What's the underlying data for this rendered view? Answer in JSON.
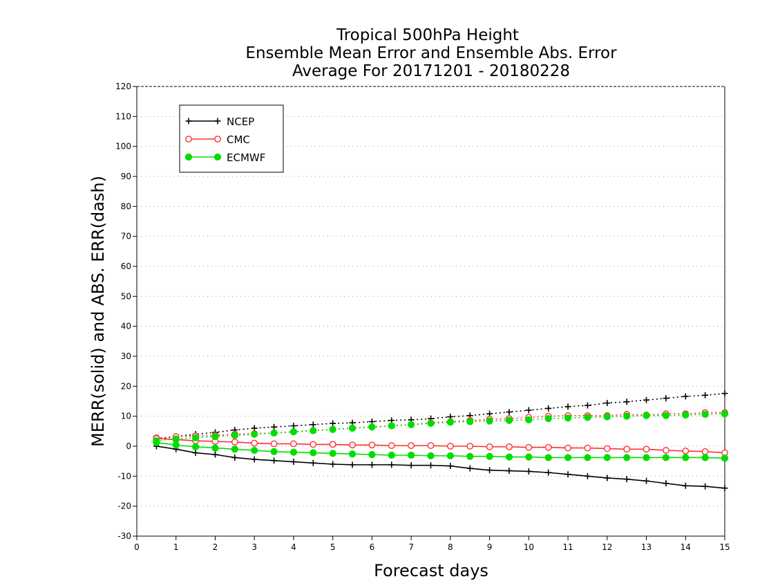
{
  "chart_data": {
    "type": "line",
    "title": [
      "Tropical 500hPa Height",
      "Ensemble Mean Error and Ensemble Abs. Error",
      "Average For 20171201 - 20180228"
    ],
    "xlabel": "Forecast days",
    "ylabel": "MERR(solid) and ABS. ERR(dash)",
    "xlim": [
      0,
      15
    ],
    "ylim": [
      -30,
      120
    ],
    "xticks": [
      "0",
      "1",
      "2",
      "3",
      "4",
      "5",
      "6",
      "7",
      "8",
      "9",
      "10",
      "11",
      "12",
      "13",
      "14",
      "15"
    ],
    "yticks": [
      "-30",
      "-20",
      "-10",
      "0",
      "10",
      "20",
      "30",
      "40",
      "50",
      "60",
      "70",
      "80",
      "90",
      "100",
      "110",
      "120"
    ],
    "grid": "horizontal dotted",
    "legend_position": "top-left",
    "x": [
      0.5,
      1,
      1.5,
      2,
      2.5,
      3,
      3.5,
      4,
      4.5,
      5,
      5.5,
      6,
      6.5,
      7,
      7.5,
      8,
      8.5,
      9,
      9.5,
      10,
      10.5,
      11,
      11.5,
      12,
      12.5,
      13,
      13.5,
      14,
      14.5,
      15
    ],
    "series": [
      {
        "name": "NCEP",
        "color": "#000000",
        "marker": "plus",
        "merr": [
          0,
          -1,
          -2.2,
          -2.8,
          -3.8,
          -4.4,
          -4.8,
          -5.2,
          -5.6,
          -6,
          -6.2,
          -6.2,
          -6.2,
          -6.4,
          -6.4,
          -6.6,
          -7.4,
          -8,
          -8.2,
          -8.4,
          -8.8,
          -9.4,
          -10,
          -10.6,
          -11,
          -11.6,
          -12.4,
          -13.2,
          -13.4,
          -14
        ],
        "abs_err": [
          2.4,
          3.2,
          4,
          4.6,
          5.4,
          6,
          6.4,
          6.8,
          7.2,
          7.6,
          7.8,
          8.2,
          8.6,
          8.8,
          9.2,
          9.8,
          10.2,
          10.8,
          11.4,
          12,
          12.6,
          13.2,
          13.6,
          14.4,
          14.8,
          15.4,
          16,
          16.6,
          17,
          17.6
        ]
      },
      {
        "name": "CMC",
        "color": "#ff3030",
        "marker": "open-circle",
        "merr": [
          2.6,
          2.2,
          1.8,
          1.6,
          1.4,
          1,
          0.8,
          0.8,
          0.6,
          0.6,
          0.4,
          0.4,
          0.2,
          0.2,
          0.2,
          0,
          0,
          -0.2,
          -0.2,
          -0.4,
          -0.4,
          -0.6,
          -0.6,
          -0.8,
          -1,
          -1,
          -1.4,
          -1.6,
          -1.8,
          -2.2
        ],
        "abs_err": [
          2.8,
          3.2,
          3.4,
          3.6,
          4,
          4.2,
          4.4,
          4.8,
          5.2,
          5.6,
          6,
          6.4,
          6.8,
          7.2,
          7.8,
          8.2,
          8.6,
          9,
          9.2,
          9.6,
          10,
          10.2,
          10.2,
          10.2,
          10.6,
          10.4,
          10.8,
          10.8,
          11.2,
          11.2
        ]
      },
      {
        "name": "ECMWF",
        "color": "#00dd00",
        "marker": "filled-circle",
        "merr": [
          1.2,
          0.4,
          -0.2,
          -0.6,
          -1,
          -1.4,
          -1.8,
          -2,
          -2.2,
          -2.4,
          -2.6,
          -2.8,
          -3,
          -3,
          -3.2,
          -3.2,
          -3.4,
          -3.4,
          -3.6,
          -3.6,
          -3.8,
          -3.8,
          -3.8,
          -3.8,
          -3.8,
          -3.8,
          -3.8,
          -3.8,
          -3.8,
          -4
        ],
        "abs_err": [
          1.8,
          2.4,
          2.8,
          3.2,
          3.6,
          4,
          4.4,
          4.8,
          5.2,
          5.6,
          6,
          6.4,
          6.8,
          7.2,
          7.6,
          8,
          8.2,
          8.4,
          8.6,
          8.8,
          9.2,
          9.4,
          9.6,
          9.8,
          10,
          10.2,
          10.2,
          10.4,
          10.6,
          10.8
        ]
      }
    ]
  }
}
